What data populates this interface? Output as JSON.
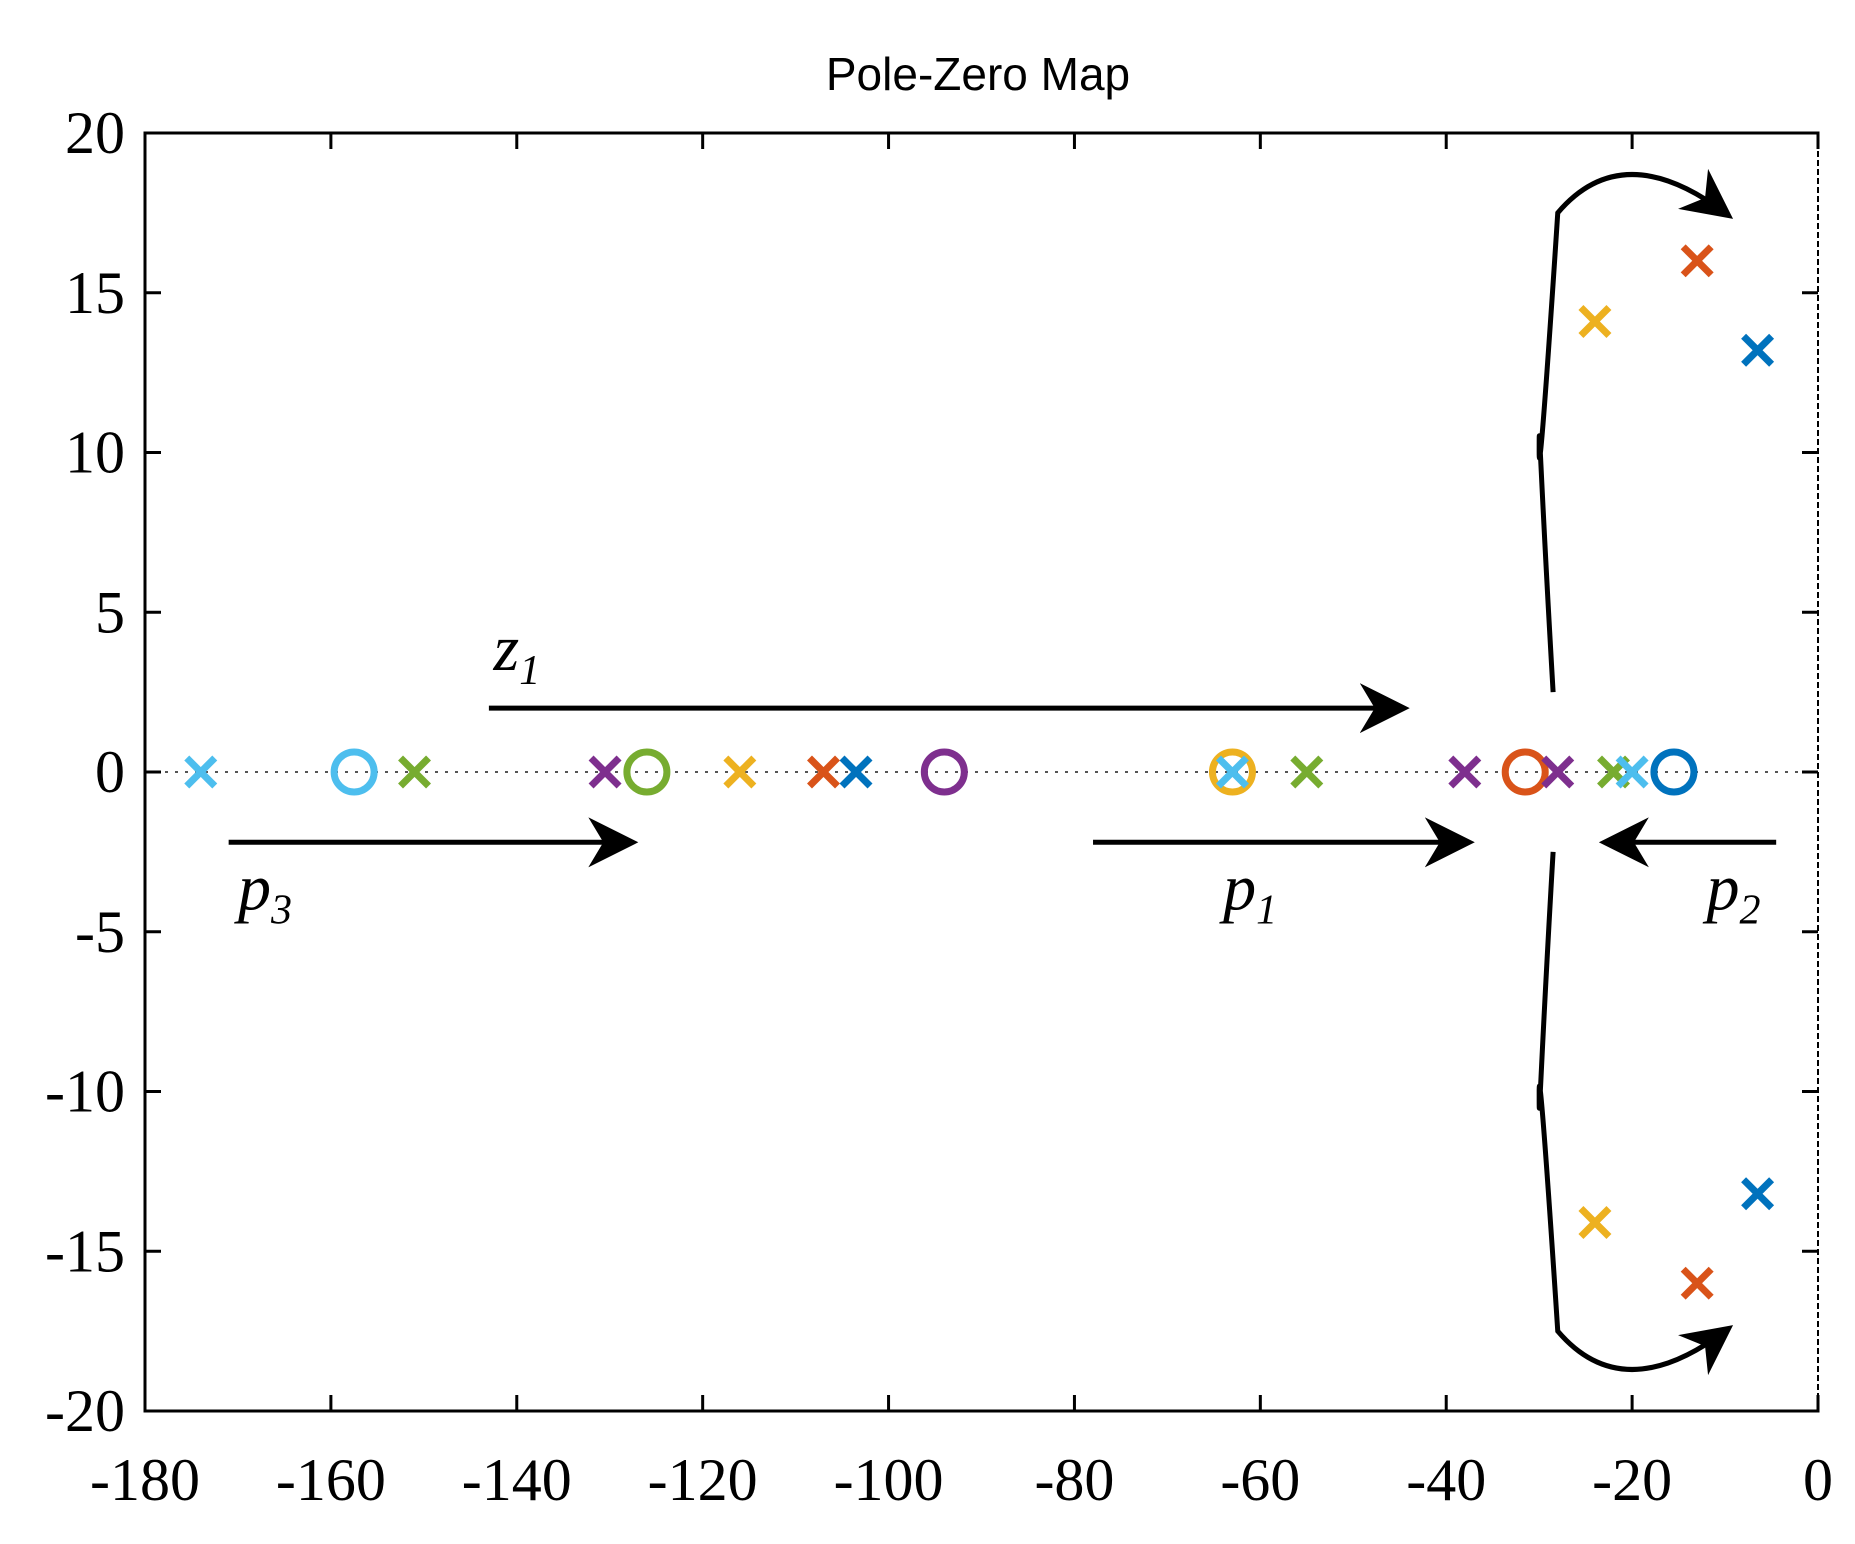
{
  "chart_data": {
    "type": "scatter",
    "title": "Pole-Zero Map",
    "xlabel": "",
    "ylabel": "",
    "xlim": [
      -180,
      0
    ],
    "ylim": [
      -20,
      20
    ],
    "xticks": [
      -180,
      -160,
      -140,
      -120,
      -100,
      -80,
      -60,
      -40,
      -20,
      0
    ],
    "yticks": [
      -20,
      -15,
      -10,
      -5,
      0,
      5,
      10,
      15,
      20
    ],
    "xtick_labels": [
      "-180",
      "-160",
      "-140",
      "-120",
      "-100",
      "-80",
      "-60",
      "-40",
      "-20",
      "0"
    ],
    "ytick_labels": [
      "-20",
      "-15",
      "-10",
      "-5",
      "0",
      "5",
      "10",
      "15",
      "20"
    ],
    "grid": false,
    "zero_line": "dotted",
    "colors": {
      "blue": "#0072bd",
      "orange": "#d95319",
      "yellow": "#edb120",
      "purple": "#7e2f8e",
      "green": "#77ac30",
      "cyan": "#4dbeee",
      "annotation": "#000000"
    },
    "series": [
      {
        "name": "blue",
        "color": "#0072bd",
        "poles": [
          [
            -103.5,
            0
          ],
          [
            -6.5,
            13.2
          ],
          [
            -6.5,
            -13.2
          ]
        ],
        "zeros": [
          [
            -15.5,
            0
          ]
        ]
      },
      {
        "name": "orange",
        "color": "#d95319",
        "poles": [
          [
            -107,
            0
          ],
          [
            -13,
            16
          ],
          [
            -13,
            -16
          ]
        ],
        "zeros": [
          [
            -31.5,
            0
          ]
        ]
      },
      {
        "name": "yellow",
        "color": "#edb120",
        "poles": [
          [
            -116,
            0
          ],
          [
            -24,
            14.1
          ],
          [
            -24,
            -14.1
          ]
        ],
        "zeros": [
          [
            -63,
            0
          ]
        ]
      },
      {
        "name": "purple",
        "color": "#7e2f8e",
        "poles": [
          [
            -130.5,
            0
          ],
          [
            -38,
            0
          ],
          [
            -28,
            0
          ]
        ],
        "zeros": [
          [
            -94,
            0
          ]
        ]
      },
      {
        "name": "green",
        "color": "#77ac30",
        "poles": [
          [
            -151,
            0
          ],
          [
            -55,
            0
          ],
          [
            -22,
            0
          ]
        ],
        "zeros": [
          [
            -126,
            0
          ]
        ]
      },
      {
        "name": "cyan",
        "color": "#4dbeee",
        "poles": [
          [
            -174,
            0
          ],
          [
            -63,
            0
          ],
          [
            -20,
            0
          ]
        ],
        "zeros": [
          [
            -157.5,
            0
          ]
        ]
      }
    ],
    "annotations": [
      {
        "id": "z1",
        "base": "z",
        "sub": "1",
        "text_at": [
          -142.5,
          3.2
        ],
        "arrow_from": [
          -143,
          2
        ],
        "arrow_to": [
          -45,
          2
        ]
      },
      {
        "id": "p3",
        "base": "p",
        "sub": "3",
        "text_at": [
          -170,
          -4.3
        ],
        "arrow_from": [
          -171,
          -2.2
        ],
        "arrow_to": [
          -128,
          -2.2
        ]
      },
      {
        "id": "p1",
        "base": "p",
        "sub": "1",
        "text_at": [
          -64,
          -4.3
        ],
        "arrow_from": [
          -78,
          -2.2
        ],
        "arrow_to": [
          -38,
          -2.2
        ]
      },
      {
        "id": "p2",
        "base": "p",
        "sub": "2",
        "text_at": [
          -12,
          -4.3
        ],
        "arrow_from": [
          -4.5,
          -2.2
        ],
        "arrow_to": [
          -22.5,
          -2.2
        ]
      }
    ],
    "root_locus_arrows": [
      {
        "id": "upper-branch",
        "path": [
          [
            -28.5,
            2.5
          ],
          [
            -30,
            10
          ],
          [
            -28,
            17.5
          ],
          [
            -21,
            19
          ],
          [
            -10,
            17.5
          ]
        ]
      },
      {
        "id": "lower-branch",
        "path": [
          [
            -28.5,
            -2.5
          ],
          [
            -30,
            -10
          ],
          [
            -28,
            -17.5
          ],
          [
            -21,
            -19
          ],
          [
            -10,
            -17.5
          ]
        ]
      }
    ]
  }
}
